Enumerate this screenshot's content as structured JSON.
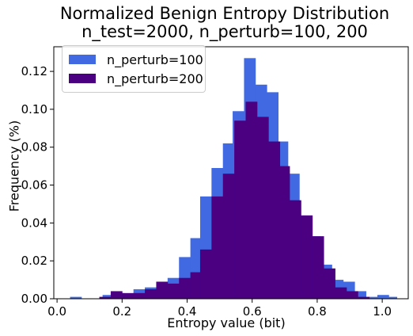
{
  "chart_data": {
    "type": "histogram",
    "title": [
      "Normalized Benign Entropy Distribution",
      "n_test=2000, n_perturb=100, 200"
    ],
    "xlabel": "Entropy value (bit)",
    "ylabel": "Frequency (%)",
    "xlim": [
      -0.01,
      1.08
    ],
    "ylim": [
      0,
      0.133
    ],
    "xticks": [
      "0.0",
      "0.2",
      "0.4",
      "0.6",
      "0.8",
      "1.0"
    ],
    "yticks": [
      "0.00",
      "0.02",
      "0.04",
      "0.06",
      "0.08",
      "0.10",
      "0.12"
    ],
    "legend_position": "top-left",
    "series": [
      {
        "name": "n_perturb=100",
        "color": "#4169e1",
        "bins": [
          [
            0.04,
            0.075,
            0.001
          ],
          [
            0.14,
            0.175,
            0.002
          ],
          [
            0.175,
            0.205,
            0.003
          ],
          [
            0.205,
            0.235,
            0.002
          ],
          [
            0.235,
            0.27,
            0.005
          ],
          [
            0.27,
            0.305,
            0.006
          ],
          [
            0.305,
            0.34,
            0.009
          ],
          [
            0.34,
            0.375,
            0.011
          ],
          [
            0.375,
            0.41,
            0.022
          ],
          [
            0.41,
            0.44,
            0.032
          ],
          [
            0.44,
            0.475,
            0.054
          ],
          [
            0.475,
            0.51,
            0.069
          ],
          [
            0.51,
            0.54,
            0.082
          ],
          [
            0.54,
            0.575,
            0.099
          ],
          [
            0.575,
            0.61,
            0.127
          ],
          [
            0.61,
            0.645,
            0.113
          ],
          [
            0.645,
            0.68,
            0.109
          ],
          [
            0.68,
            0.71,
            0.083
          ],
          [
            0.71,
            0.745,
            0.066
          ],
          [
            0.745,
            0.78,
            0.043
          ],
          [
            0.78,
            0.81,
            0.033
          ],
          [
            0.81,
            0.845,
            0.018
          ],
          [
            0.845,
            0.88,
            0.01
          ],
          [
            0.88,
            0.915,
            0.009
          ],
          [
            0.915,
            0.95,
            0.004
          ],
          [
            0.95,
            0.985,
            0.001
          ],
          [
            0.985,
            1.02,
            0.002
          ],
          [
            1.02,
            1.045,
            0.001
          ]
        ]
      },
      {
        "name": "n_perturb=200",
        "color": "#4b0082",
        "bins": [
          [
            0.13,
            0.165,
            0.001
          ],
          [
            0.165,
            0.2,
            0.004
          ],
          [
            0.2,
            0.235,
            0.003
          ],
          [
            0.235,
            0.27,
            0.003
          ],
          [
            0.27,
            0.305,
            0.005
          ],
          [
            0.305,
            0.34,
            0.009
          ],
          [
            0.34,
            0.375,
            0.008
          ],
          [
            0.375,
            0.41,
            0.011
          ],
          [
            0.41,
            0.44,
            0.014
          ],
          [
            0.44,
            0.475,
            0.026
          ],
          [
            0.475,
            0.51,
            0.054
          ],
          [
            0.51,
            0.545,
            0.066
          ],
          [
            0.545,
            0.58,
            0.094
          ],
          [
            0.58,
            0.615,
            0.104
          ],
          [
            0.615,
            0.65,
            0.096
          ],
          [
            0.65,
            0.685,
            0.083
          ],
          [
            0.685,
            0.715,
            0.07
          ],
          [
            0.715,
            0.75,
            0.052
          ],
          [
            0.75,
            0.785,
            0.044
          ],
          [
            0.785,
            0.82,
            0.033
          ],
          [
            0.82,
            0.855,
            0.016
          ],
          [
            0.855,
            0.89,
            0.006
          ],
          [
            0.89,
            0.925,
            0.004
          ],
          [
            0.925,
            0.96,
            0.001
          ]
        ]
      }
    ]
  }
}
